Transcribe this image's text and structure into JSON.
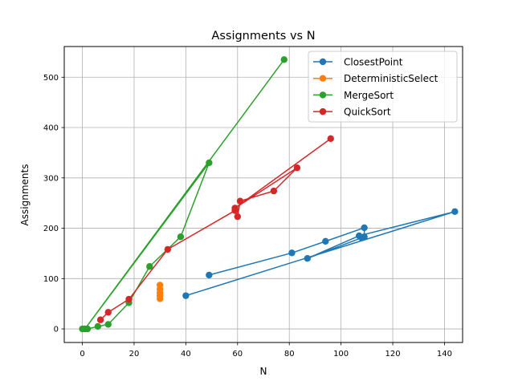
{
  "chart_data": {
    "type": "line",
    "title": "Assignments vs N",
    "xlabel": "N",
    "ylabel": "Assignments",
    "xlim": [
      -7,
      147
    ],
    "ylim": [
      -27,
      561
    ],
    "xticks": [
      0,
      20,
      40,
      60,
      80,
      100,
      120,
      140
    ],
    "yticks": [
      0,
      100,
      200,
      300,
      400,
      500
    ],
    "grid": true,
    "legend_position": "top-right",
    "series": [
      {
        "name": "ClosestPoint",
        "color": "#1f77b4",
        "points": [
          [
            49,
            107
          ],
          [
            81,
            151
          ],
          [
            94,
            174
          ],
          [
            109,
            201
          ],
          [
            109,
            183
          ],
          [
            108,
            181
          ],
          [
            87,
            140
          ],
          [
            107,
            185
          ],
          [
            144,
            233
          ],
          [
            40,
            66
          ]
        ]
      },
      {
        "name": "DeterministicSelect",
        "color": "#ff7f0e",
        "points": [
          [
            30,
            60
          ],
          [
            30,
            66
          ],
          [
            30,
            72
          ],
          [
            30,
            79
          ],
          [
            30,
            87
          ]
        ]
      },
      {
        "name": "MergeSort",
        "color": "#2ca02c",
        "points": [
          [
            0,
            0
          ],
          [
            2,
            0
          ],
          [
            6,
            5
          ],
          [
            10,
            9
          ],
          [
            18,
            52
          ],
          [
            26,
            124
          ],
          [
            38,
            183
          ],
          [
            49,
            330
          ],
          [
            1,
            0
          ],
          [
            78,
            535
          ]
        ]
      },
      {
        "name": "QuickSort",
        "color": "#d62728",
        "points": [
          [
            7,
            18
          ],
          [
            10,
            33
          ],
          [
            18,
            59
          ],
          [
            33,
            158
          ],
          [
            59,
            235
          ],
          [
            60,
            223
          ],
          [
            61,
            254
          ],
          [
            74,
            274
          ],
          [
            83,
            320
          ],
          [
            59,
            240
          ],
          [
            96,
            378
          ]
        ]
      }
    ]
  }
}
